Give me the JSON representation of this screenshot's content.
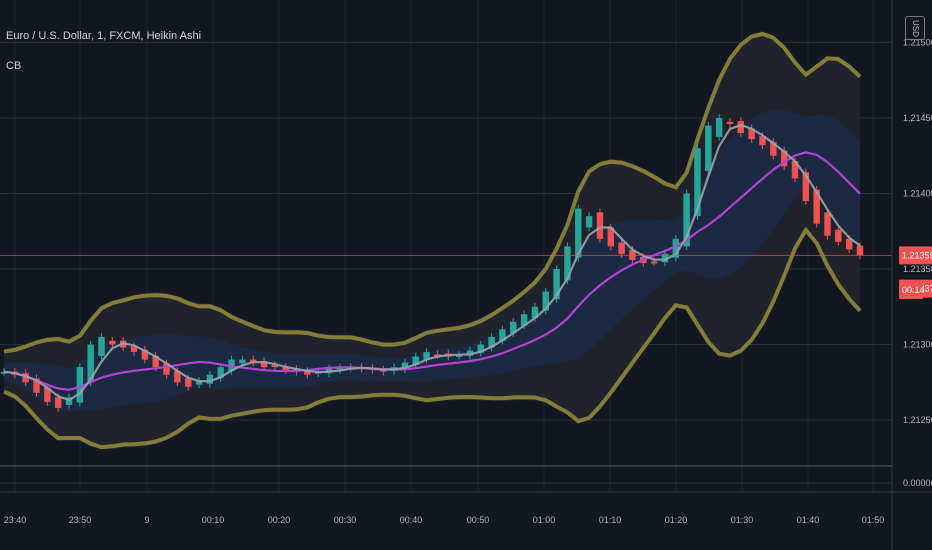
{
  "header": {
    "symbol_title": "Euro / U.S. Dollar, 1, FXCM, Heikin Ashi",
    "indicator_label": "CB",
    "currency": "USD"
  },
  "colors": {
    "background": "#131722",
    "grid": "#2a2e39",
    "bull": "#26a69a",
    "bear": "#ef5350",
    "outer_band": "#8f8738",
    "ma_slow": "#b442d6",
    "ma_fast": "#9aa3a7",
    "price_line": "#ef5350",
    "inner_cloud": "#1c2a44",
    "outer_cloud": "#23252d"
  },
  "price_axis": {
    "ticks": [
      "1.21500",
      "1.21450",
      "1.21400",
      "1.21350",
      "1.21300",
      "1.21250"
    ],
    "lower_pane_tick": "0.00000",
    "current_price_label": "1.21359",
    "second_price_label": "1.21337",
    "countdown_label": "00:14"
  },
  "time_axis": {
    "ticks": [
      "23:40",
      "23:50",
      "9",
      "00:10",
      "00:20",
      "00:30",
      "00:40",
      "00:50",
      "01:00",
      "01:10",
      "01:20",
      "01:30",
      "01:40",
      "01:50"
    ]
  },
  "chart_data": {
    "type": "candlestick",
    "title": "Euro / U.S. Dollar, 1, FXCM, Heikin Ashi",
    "indicator": "CB",
    "x_range": [
      "23:36",
      "01:48"
    ],
    "ylim": [
      1.21225,
      1.2151
    ],
    "current_price": 1.21359,
    "grid": true,
    "series": [
      {
        "name": "price",
        "close": [
          1.21282,
          1.2128,
          1.21275,
          1.21268,
          1.21262,
          1.21258,
          1.21265,
          1.21285,
          1.213,
          1.21305,
          1.213,
          1.21298,
          1.21295,
          1.2129,
          1.21285,
          1.2128,
          1.21275,
          1.21272,
          1.21276,
          1.2128,
          1.21285,
          1.2129,
          1.2129,
          1.21288,
          1.21285,
          1.21285,
          1.21283,
          1.21282,
          1.2128,
          1.21282,
          1.21284,
          1.21285,
          1.21285,
          1.21284,
          1.21283,
          1.21282,
          1.21285,
          1.21288,
          1.21292,
          1.21295,
          1.21293,
          1.21292,
          1.21293,
          1.21296,
          1.213,
          1.21305,
          1.2131,
          1.21315,
          1.2132,
          1.21325,
          1.21335,
          1.2135,
          1.21365,
          1.2139,
          1.21385,
          1.2137,
          1.21365,
          1.2136,
          1.21356,
          1.21354,
          1.21355,
          1.2136,
          1.2137,
          1.214,
          1.2143,
          1.21445,
          1.2145,
          1.21446,
          1.2144,
          1.21436,
          1.21432,
          1.21425,
          1.21418,
          1.2141,
          1.21395,
          1.2138,
          1.21372,
          1.21368,
          1.21363,
          1.21359
        ]
      },
      {
        "name": "fast MA"
      },
      {
        "name": "slow MA"
      },
      {
        "name": "upper band"
      },
      {
        "name": "lower band"
      }
    ]
  }
}
